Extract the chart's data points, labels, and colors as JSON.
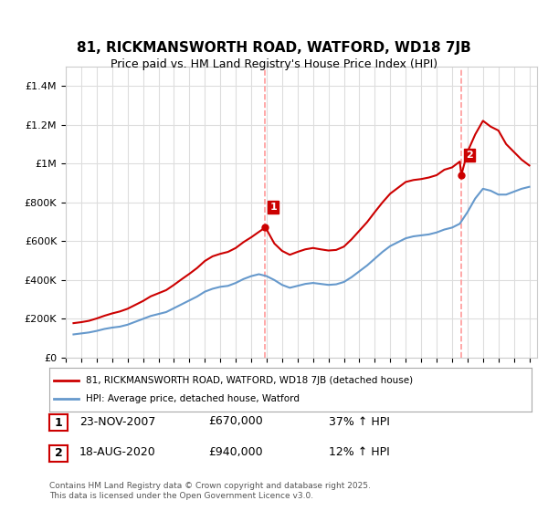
{
  "title": "81, RICKMANSWORTH ROAD, WATFORD, WD18 7JB",
  "subtitle": "Price paid vs. HM Land Registry's House Price Index (HPI)",
  "legend_line1": "81, RICKMANSWORTH ROAD, WATFORD, WD18 7JB (detached house)",
  "legend_line2": "HPI: Average price, detached house, Watford",
  "annotation1_label": "1",
  "annotation1_date": "23-NOV-2007",
  "annotation1_price": "£670,000",
  "annotation1_hpi": "37% ↑ HPI",
  "annotation2_label": "2",
  "annotation2_date": "18-AUG-2020",
  "annotation2_price": "£940,000",
  "annotation2_hpi": "12% ↑ HPI",
  "footer": "Contains HM Land Registry data © Crown copyright and database right 2025.\nThis data is licensed under the Open Government Licence v3.0.",
  "line1_color": "#cc0000",
  "line2_color": "#6699cc",
  "vline_color": "#ff9999",
  "marker1_x": 2007.9,
  "marker2_x": 2020.6,
  "ylim_min": 0,
  "ylim_max": 1500000,
  "xlim_min": 1995,
  "xlim_max": 2025.5,
  "background_color": "#ffffff",
  "grid_color": "#dddddd"
}
